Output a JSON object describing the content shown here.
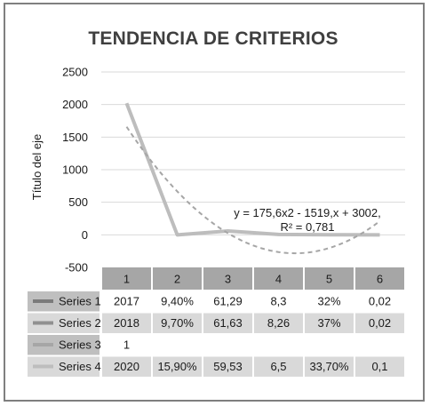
{
  "chart_data": {
    "type": "line",
    "title": "TENDENCIA DE CRITERIOS",
    "ylabel": "Título del eje",
    "xlabel": "",
    "categories": [
      "1",
      "2",
      "3",
      "4",
      "5",
      "6"
    ],
    "ylim": [
      -500,
      2500
    ],
    "yticks": [
      "2500",
      "2000",
      "1500",
      "1000",
      "500",
      "0",
      "-500"
    ],
    "grid": true,
    "legend": "data-table",
    "series": [
      {
        "name": "Series 1",
        "display": [
          "2017",
          "9,40%",
          "61,29",
          "8,3",
          "32%",
          "0,02"
        ],
        "values": [
          2017,
          0.094,
          61.29,
          8.3,
          0.32,
          0.02
        ],
        "color": "#7a7a7a",
        "plotted": false
      },
      {
        "name": "Series 2",
        "display": [
          "2018",
          "9,70%",
          "61,63",
          "8,26",
          "37%",
          "0,02"
        ],
        "values": [
          2018,
          0.097,
          61.63,
          8.26,
          0.37,
          0.02
        ],
        "color": "#909090",
        "plotted": false
      },
      {
        "name": "Series 3",
        "display": [
          "1",
          "",
          "",
          "",
          "",
          ""
        ],
        "values": [
          1,
          null,
          null,
          null,
          null,
          null
        ],
        "color": "#a6a6a6",
        "plotted": false
      },
      {
        "name": "Series 4",
        "display": [
          "2020",
          "15,90%",
          "59,53",
          "6,5",
          "33,70%",
          "0,1"
        ],
        "values": [
          2020,
          0.159,
          59.53,
          6.5,
          0.337,
          0.1
        ],
        "color": "#bdbdbd",
        "plotted": true
      }
    ],
    "trendline": {
      "type": "polynomial",
      "order": 2,
      "equation": "y = 175,6x2 - 1519,x + 3002,",
      "r2": "R² = 0,781",
      "color": "#a6a6a6",
      "style": "dashed"
    }
  }
}
